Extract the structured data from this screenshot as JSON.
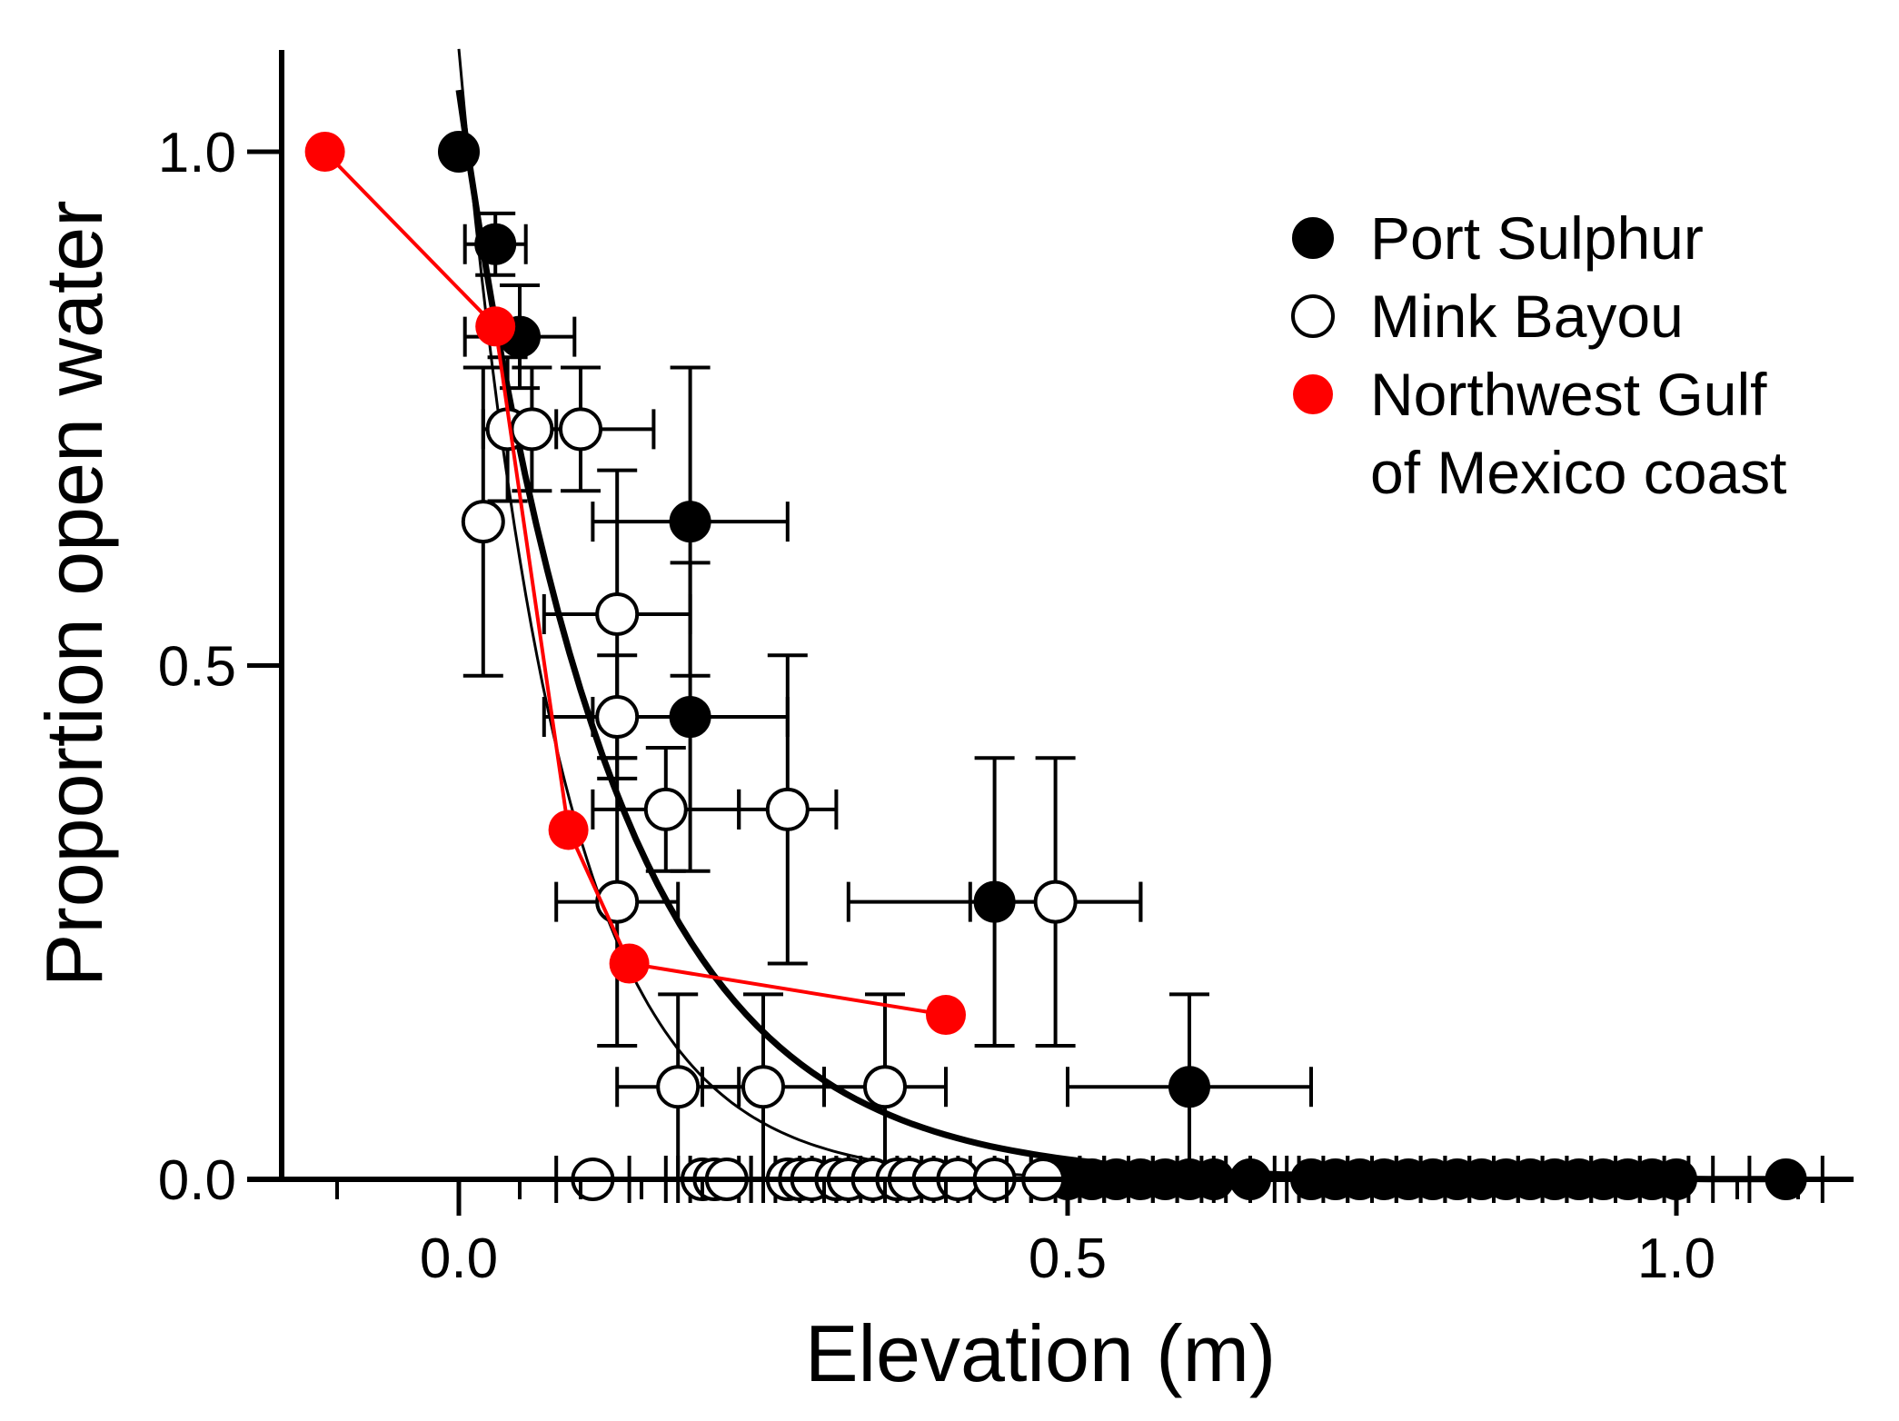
{
  "chart_data": {
    "type": "scatter",
    "title": "",
    "xlabel": "Elevation (m)",
    "ylabel": "Proportion open water",
    "xlim": [
      -0.15,
      1.15
    ],
    "ylim": [
      0,
      1.1
    ],
    "xticks": [
      0.0,
      0.5,
      1.0
    ],
    "xtick_labels": [
      "0.0",
      "0.5",
      "1.0"
    ],
    "yticks": [
      0.0,
      0.5,
      1.0
    ],
    "ytick_labels": [
      "0.0",
      "0.5",
      "1.0"
    ],
    "x_minor_ticks": [
      -0.1,
      0.05,
      0.1,
      0.15,
      0.2,
      0.25,
      0.3,
      0.35,
      0.4,
      0.45,
      0.55,
      0.6,
      0.65,
      0.7,
      0.75,
      0.8,
      0.85,
      0.9,
      0.95,
      1.05,
      1.1
    ],
    "legend_position": "top-right",
    "series": [
      {
        "name": "Port Sulphur",
        "marker": "filled-black-circle",
        "color": "#000000",
        "points": [
          {
            "x": 0.0,
            "y": 1.0,
            "xerr": 0.0,
            "yerr": 0.0
          },
          {
            "x": 0.03,
            "y": 0.91,
            "xerr": 0.025,
            "yerr": 0.03
          },
          {
            "x": 0.05,
            "y": 0.82,
            "xerr": 0.045,
            "yerr": 0.05
          },
          {
            "x": 0.19,
            "y": 0.64,
            "xerr": 0.08,
            "yerr": 0.15
          },
          {
            "x": 0.19,
            "y": 0.45,
            "xerr": 0.08,
            "yerr": 0.15
          },
          {
            "x": 0.44,
            "y": 0.27,
            "xerr": 0.12,
            "yerr": 0.14
          },
          {
            "x": 0.6,
            "y": 0.09,
            "xerr": 0.1,
            "yerr": 0.09
          }
        ],
        "zero_points_x": [
          0.5,
          0.52,
          0.54,
          0.56,
          0.58,
          0.6,
          0.62,
          0.65,
          0.7,
          0.72,
          0.74,
          0.76,
          0.78,
          0.8,
          0.82,
          0.84,
          0.86,
          0.88,
          0.9,
          0.92,
          0.94,
          0.96,
          0.98,
          1.0,
          1.09
        ],
        "fit_curve": {
          "type": "exponential-decay",
          "y0": 1.06,
          "k": 8.0,
          "x_from": 0.0,
          "x_to": 1.09,
          "line_width": "thick"
        }
      },
      {
        "name": "Mink Bayou",
        "marker": "open-circle",
        "color": "#000000",
        "points": [
          {
            "x": 0.02,
            "y": 0.64,
            "xerr": 0.0,
            "yerr": 0.15
          },
          {
            "x": 0.04,
            "y": 0.73,
            "xerr": 0.02,
            "yerr": 0.07
          },
          {
            "x": 0.06,
            "y": 0.73,
            "xerr": 0.02,
            "yerr": 0.06
          },
          {
            "x": 0.1,
            "y": 0.73,
            "xerr": 0.06,
            "yerr": 0.06
          },
          {
            "x": 0.13,
            "y": 0.55,
            "xerr": 0.06,
            "yerr": 0.14
          },
          {
            "x": 0.13,
            "y": 0.45,
            "xerr": 0.06,
            "yerr": 0.06
          },
          {
            "x": 0.17,
            "y": 0.36,
            "xerr": 0.06,
            "yerr": 0.06
          },
          {
            "x": 0.27,
            "y": 0.36,
            "xerr": 0.04,
            "yerr": 0.15
          },
          {
            "x": 0.13,
            "y": 0.27,
            "xerr": 0.05,
            "yerr": 0.14
          },
          {
            "x": 0.18,
            "y": 0.09,
            "xerr": 0.05,
            "yerr": 0.09
          },
          {
            "x": 0.25,
            "y": 0.09,
            "xerr": 0.05,
            "yerr": 0.09
          },
          {
            "x": 0.35,
            "y": 0.09,
            "xerr": 0.05,
            "yerr": 0.09
          },
          {
            "x": 0.49,
            "y": 0.27,
            "xerr": 0.07,
            "yerr": 0.14
          }
        ],
        "zero_points_x": [
          0.11,
          0.2,
          0.21,
          0.22,
          0.27,
          0.28,
          0.29,
          0.31,
          0.32,
          0.34,
          0.36,
          0.37,
          0.39,
          0.41,
          0.44,
          0.48
        ],
        "fit_curve": {
          "type": "exponential-decay",
          "y0": 1.1,
          "k": 12.0,
          "x_from": 0.0,
          "x_to": 0.55,
          "line_width": "thin"
        }
      },
      {
        "name": "Northwest Gulf of Mexico coast",
        "legend_lines": [
          "Northwest Gulf",
          "of Mexico coast"
        ],
        "marker": "filled-red-circle",
        "color": "#ff0000",
        "connected": true,
        "points": [
          {
            "x": -0.11,
            "y": 1.0
          },
          {
            "x": 0.03,
            "y": 0.83
          },
          {
            "x": 0.09,
            "y": 0.34
          },
          {
            "x": 0.14,
            "y": 0.21
          },
          {
            "x": 0.4,
            "y": 0.16
          }
        ]
      }
    ]
  }
}
